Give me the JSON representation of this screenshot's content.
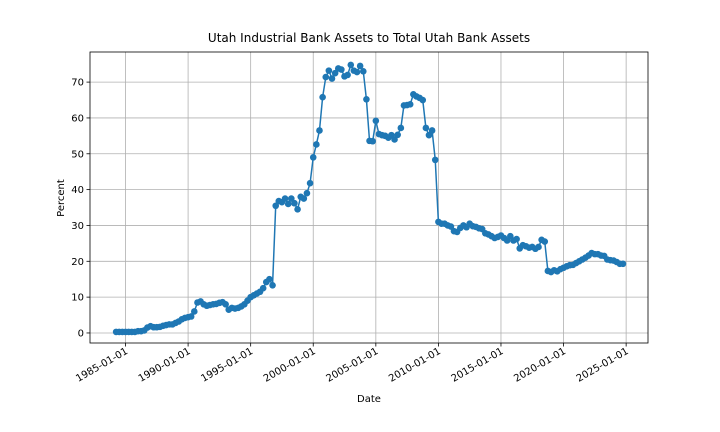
{
  "chart_data": {
    "type": "line",
    "title": "Utah Industrial Bank Assets to Total Utah Bank Assets",
    "xlabel": "Date",
    "ylabel": "Percent",
    "color": "#1f77b4",
    "grid": true,
    "markers": true,
    "xlim": [
      "1982-03-01",
      "2026-10-01"
    ],
    "xticks": [
      "1985-01-01",
      "1990-01-01",
      "1995-01-01",
      "2000-01-01",
      "2005-01-01",
      "2010-01-01",
      "2015-01-01",
      "2020-01-01",
      "2025-01-01"
    ],
    "ylim": [
      -2.8,
      78.4
    ],
    "yticks": [
      0,
      10,
      20,
      30,
      40,
      50,
      60,
      70
    ],
    "x": [
      "1984-04-01",
      "1984-07-01",
      "1984-10-01",
      "1985-01-01",
      "1985-04-01",
      "1985-07-01",
      "1985-10-01",
      "1986-01-01",
      "1986-04-01",
      "1986-07-01",
      "1986-10-01",
      "1987-01-01",
      "1987-04-01",
      "1987-07-01",
      "1987-10-01",
      "1988-01-01",
      "1988-04-01",
      "1988-07-01",
      "1988-10-01",
      "1989-01-01",
      "1989-04-01",
      "1989-07-01",
      "1989-10-01",
      "1990-01-01",
      "1990-04-01",
      "1990-07-01",
      "1990-10-01",
      "1991-01-01",
      "1991-04-01",
      "1991-07-01",
      "1991-10-01",
      "1992-01-01",
      "1992-04-01",
      "1992-07-01",
      "1992-10-01",
      "1993-01-01",
      "1993-04-01",
      "1993-07-01",
      "1993-10-01",
      "1994-01-01",
      "1994-04-01",
      "1994-07-01",
      "1994-10-01",
      "1995-01-01",
      "1995-04-01",
      "1995-07-01",
      "1995-10-01",
      "1996-01-01",
      "1996-04-01",
      "1996-07-01",
      "1996-10-01",
      "1997-01-01",
      "1997-04-01",
      "1997-07-01",
      "1997-10-01",
      "1998-01-01",
      "1998-04-01",
      "1998-07-01",
      "1998-10-01",
      "1999-01-01",
      "1999-04-01",
      "1999-07-01",
      "1999-10-01",
      "2000-01-01",
      "2000-04-01",
      "2000-07-01",
      "2000-10-01",
      "2001-01-01",
      "2001-04-01",
      "2001-07-01",
      "2001-10-01",
      "2002-01-01",
      "2002-04-01",
      "2002-07-01",
      "2002-10-01",
      "2003-01-01",
      "2003-04-01",
      "2003-07-01",
      "2003-10-01",
      "2004-01-01",
      "2004-04-01",
      "2004-07-01",
      "2004-10-01",
      "2005-01-01",
      "2005-04-01",
      "2005-07-01",
      "2005-10-01",
      "2006-01-01",
      "2006-04-01",
      "2006-07-01",
      "2006-10-01",
      "2007-01-01",
      "2007-04-01",
      "2007-07-01",
      "2007-10-01",
      "2008-01-01",
      "2008-04-01",
      "2008-07-01",
      "2008-10-01",
      "2009-01-01",
      "2009-04-01",
      "2009-07-01",
      "2009-10-01",
      "2010-01-01",
      "2010-04-01",
      "2010-07-01",
      "2010-10-01",
      "2011-01-01",
      "2011-04-01",
      "2011-07-01",
      "2011-10-01",
      "2012-01-01",
      "2012-04-01",
      "2012-07-01",
      "2012-10-01",
      "2013-01-01",
      "2013-04-01",
      "2013-07-01",
      "2013-10-01",
      "2014-01-01",
      "2014-04-01",
      "2014-07-01",
      "2014-10-01",
      "2015-01-01",
      "2015-04-01",
      "2015-07-01",
      "2015-10-01",
      "2016-01-01",
      "2016-04-01",
      "2016-07-01",
      "2016-10-01",
      "2017-01-01",
      "2017-04-01",
      "2017-07-01",
      "2017-10-01",
      "2018-01-01",
      "2018-04-01",
      "2018-07-01",
      "2018-10-01",
      "2019-01-01",
      "2019-04-01",
      "2019-07-01",
      "2019-10-01",
      "2020-01-01",
      "2020-04-01",
      "2020-07-01",
      "2020-10-01",
      "2021-01-01",
      "2021-04-01",
      "2021-07-01",
      "2021-10-01",
      "2022-01-01",
      "2022-04-01",
      "2022-07-01",
      "2022-10-01",
      "2023-01-01",
      "2023-04-01",
      "2023-07-01",
      "2023-10-01",
      "2024-01-01",
      "2024-04-01",
      "2024-07-01",
      "2024-10-01"
    ],
    "values": [
      0.3,
      0.3,
      0.3,
      0.3,
      0.3,
      0.3,
      0.3,
      0.5,
      0.5,
      0.7,
      1.5,
      1.9,
      1.6,
      1.6,
      1.7,
      2.0,
      2.2,
      2.4,
      2.4,
      2.8,
      3.2,
      3.8,
      4.2,
      4.4,
      4.6,
      6.0,
      8.5,
      8.8,
      8.0,
      7.6,
      7.8,
      8.0,
      8.1,
      8.4,
      8.6,
      8.0,
      6.5,
      7.0,
      6.8,
      7.0,
      7.4,
      8.0,
      9.0,
      10.0,
      10.5,
      11.0,
      11.5,
      12.5,
      14.2,
      15.0,
      13.3,
      35.5,
      36.8,
      36.5,
      37.5,
      36.0,
      37.5,
      36.2,
      34.5,
      38.0,
      37.5,
      39.0,
      41.8,
      49.0,
      52.6,
      56.5,
      65.8,
      71.4,
      73.2,
      71.0,
      72.5,
      73.8,
      73.5,
      71.6,
      72.0,
      74.8,
      73.2,
      72.8,
      74.5,
      73.0,
      65.2,
      53.6,
      53.5,
      59.2,
      55.5,
      55.2,
      55.0,
      54.5,
      55.2,
      54.0,
      55.3,
      57.2,
      63.5,
      63.6,
      63.8,
      66.6,
      66.0,
      65.6,
      65.0,
      57.2,
      55.2,
      56.5,
      48.3,
      31.0,
      30.5,
      30.5,
      30.0,
      29.7,
      28.4,
      28.2,
      29.3,
      30.0,
      29.5,
      30.5,
      29.8,
      29.6,
      29.2,
      29.0,
      27.8,
      27.5,
      27.0,
      26.5,
      26.8,
      27.2,
      26.5,
      25.8,
      27.0,
      25.8,
      26.2,
      23.6,
      24.5,
      24.2,
      23.8,
      24.0,
      23.5,
      24.0,
      26.0,
      25.5,
      17.3,
      17.0,
      17.5,
      17.2,
      17.8,
      18.2,
      18.6,
      18.9,
      19.0,
      19.5,
      20.0,
      20.5,
      21.0,
      21.6,
      22.3,
      22.0,
      22.0,
      21.6,
      21.5,
      20.5,
      20.3,
      20.2,
      19.8,
      19.3,
      19.3
    ]
  }
}
